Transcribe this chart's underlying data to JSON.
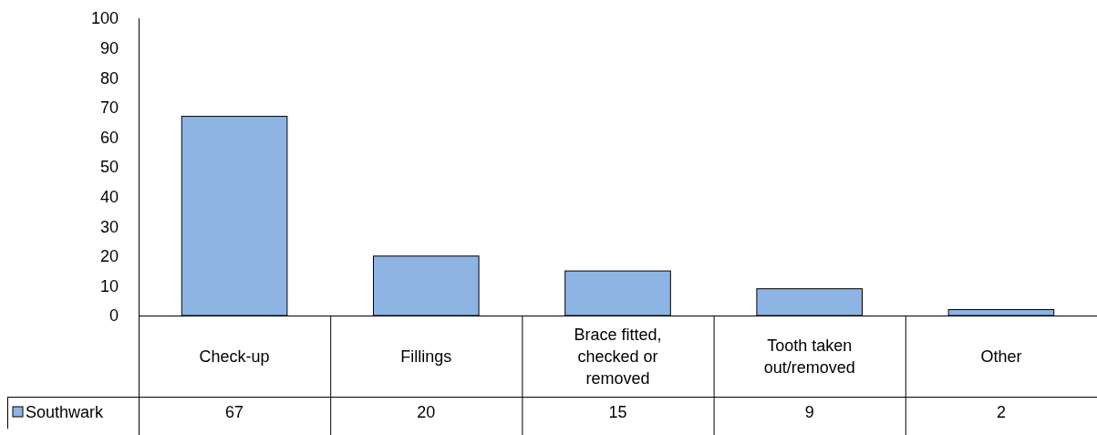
{
  "chart_data": {
    "type": "bar",
    "categories": [
      "Check-up",
      "Fillings",
      "Brace fitted, checked or removed",
      "Tooth taken out/removed",
      "Other"
    ],
    "series": [
      {
        "name": "Southwark",
        "color": "#8eb4e3",
        "values": [
          67,
          20,
          15,
          9,
          2
        ]
      }
    ],
    "ylim": [
      0,
      100
    ],
    "yticks": [
      0,
      10,
      20,
      30,
      40,
      50,
      60,
      70,
      80,
      90,
      100
    ],
    "grid": false,
    "legend": "bottom",
    "data_labels": true
  }
}
